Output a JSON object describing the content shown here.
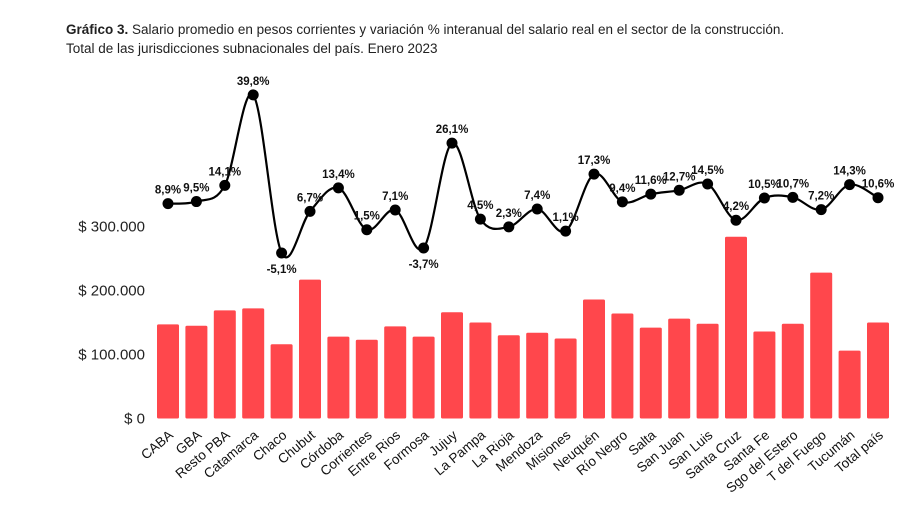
{
  "chart_data": {
    "type": "bar+line",
    "title_bold": "Gráfico 3.",
    "title": "Salario promedio en pesos corrientes y variación % interanual del salario real en el sector de la construcción.",
    "subtitle": "Total de las jurisdicciones subnacionales del país. Enero 2023",
    "categories": [
      "CABA",
      "GBA",
      "Resto PBA",
      "Catamarca",
      "Chaco",
      "Chubut",
      "Córdoba",
      "Corrientes",
      "Entre Rios",
      "Formosa",
      "Jujuy",
      "La Pampa",
      "La Rioja",
      "Mendoza",
      "Misiones",
      "Neuquén",
      "Río Negro",
      "Salta",
      "San Juan",
      "San Luis",
      "Santa Cruz",
      "Santa Fe",
      "Sgo del Estero",
      "T del Fuego",
      "Tucumán",
      "Total país"
    ],
    "bar_series": {
      "values": [
        147000,
        145000,
        169000,
        172000,
        116000,
        217000,
        128000,
        123000,
        144000,
        128000,
        166000,
        150000,
        130000,
        134000,
        125000,
        186000,
        164000,
        142000,
        156000,
        148000,
        284000,
        136000,
        148000,
        228000,
        106000,
        150000
      ],
      "color": "#FF474C"
    },
    "line_series": {
      "values": [
        8.9,
        9.5,
        14.1,
        39.8,
        -5.1,
        6.7,
        13.4,
        1.5,
        7.1,
        -3.7,
        26.1,
        4.5,
        2.3,
        7.4,
        1.1,
        17.3,
        9.4,
        11.6,
        12.7,
        14.5,
        4.2,
        10.5,
        10.7,
        7.2,
        14.3,
        10.6
      ],
      "labels": [
        "8,9%",
        "9,5%",
        "14,1%",
        "39,8%",
        "-5,1%",
        "6,7%",
        "13,4%",
        "1,5%",
        "7,1%",
        "-3,7%",
        "26,1%",
        "4,5%",
        "2,3%",
        "7,4%",
        "1,1%",
        "17,3%",
        "9,4%",
        "11,6%",
        "12,7%",
        "14,5%",
        "4,2%",
        "10,5%",
        "10,7%",
        "7,2%",
        "14,3%",
        "10,6%"
      ],
      "color": "#000000"
    },
    "y_ticks": [
      {
        "value": 0,
        "label": "$ 0"
      },
      {
        "value": 100000,
        "label": "$ 100.000"
      },
      {
        "value": 200000,
        "label": "$ 200.000"
      },
      {
        "value": 300000,
        "label": "$ 300.000"
      }
    ],
    "grid": false,
    "legend": "none"
  }
}
